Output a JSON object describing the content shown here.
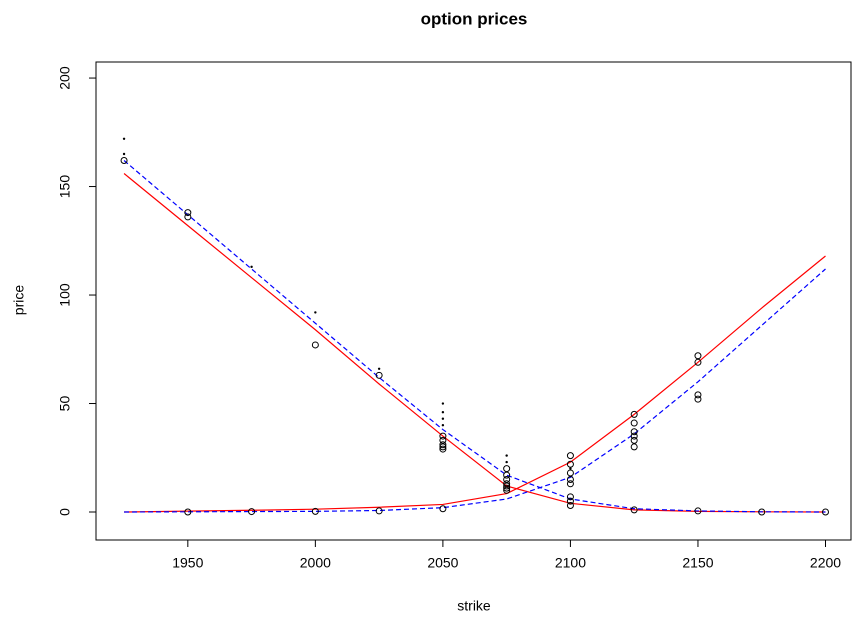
{
  "chart_data": {
    "type": "scatter",
    "title": "option prices",
    "x_label": "strike",
    "y_label": "price",
    "xlim": [
      1914,
      2210
    ],
    "ylim": [
      -12.9,
      207.4
    ],
    "xticks": [
      1950,
      2000,
      2050,
      2100,
      2150,
      2200
    ],
    "yticks": [
      0,
      50,
      100,
      150,
      200
    ],
    "series": [
      {
        "type": "line",
        "color": "#ff0000",
        "dashed": false,
        "x": [
          1925,
          1950,
          1975,
          2000,
          2025,
          2050,
          2075,
          2100,
          2125,
          2150,
          2175,
          2200
        ],
        "values": [
          156,
          132,
          108,
          84,
          59,
          35,
          12,
          4,
          1,
          0.3,
          0.1,
          0
        ]
      },
      {
        "type": "line",
        "color": "#ff0000",
        "dashed": false,
        "x": [
          1925,
          1950,
          1975,
          2000,
          2025,
          2050,
          2075,
          2100,
          2125,
          2150,
          2175,
          2200
        ],
        "values": [
          0,
          0.4,
          0.8,
          1.3,
          2.2,
          3.5,
          8.5,
          23,
          45,
          69,
          94,
          118
        ]
      },
      {
        "type": "line",
        "color": "#0000ff",
        "dashed": true,
        "x": [
          1925,
          1950,
          1975,
          2000,
          2025,
          2050,
          2075,
          2100,
          2125,
          2150,
          2175,
          2200
        ],
        "values": [
          162,
          137,
          112,
          87,
          62,
          38,
          17,
          6,
          1.5,
          0.5,
          0.1,
          0
        ]
      },
      {
        "type": "line",
        "color": "#0000ff",
        "dashed": true,
        "x": [
          1925,
          1950,
          1975,
          2000,
          2025,
          2050,
          2075,
          2100,
          2125,
          2150,
          2175,
          2200
        ],
        "values": [
          0,
          0.1,
          0.2,
          0.3,
          0.7,
          2,
          6,
          16,
          36,
          60,
          86,
          112
        ]
      },
      {
        "type": "circle",
        "color": "#000000",
        "x": [
          1925,
          1950,
          1950,
          2000,
          2025,
          2050,
          2050,
          2050,
          2050,
          2050,
          2075,
          2075,
          2075,
          2075,
          2075,
          2075,
          2075,
          2100,
          2100,
          2100,
          2100,
          2100,
          2100,
          2100,
          2100,
          2125,
          2125,
          2125,
          2125,
          2125,
          2125,
          2150,
          2150,
          2150,
          2150,
          1950,
          1975,
          2000,
          2025,
          2050,
          2125,
          2150,
          2175,
          2200
        ],
        "values": [
          162,
          138,
          136,
          77,
          63,
          35,
          33,
          31,
          30,
          29,
          20,
          17,
          15,
          13,
          12,
          11,
          10,
          26,
          22,
          18,
          15,
          13,
          7,
          5,
          3,
          45,
          41,
          37,
          35,
          33,
          30,
          72,
          69,
          54,
          52,
          0,
          0.2,
          0.3,
          0.5,
          1.5,
          1,
          0.5,
          0,
          0
        ]
      },
      {
        "type": "dot",
        "color": "#000000",
        "x": [
          1925,
          1925,
          1975,
          2000,
          2025,
          2050,
          2050,
          2050,
          2050,
          2075,
          2075,
          2100
        ],
        "values": [
          172,
          165,
          113,
          92,
          66,
          50,
          46,
          43,
          40,
          26,
          23,
          20
        ]
      }
    ]
  }
}
